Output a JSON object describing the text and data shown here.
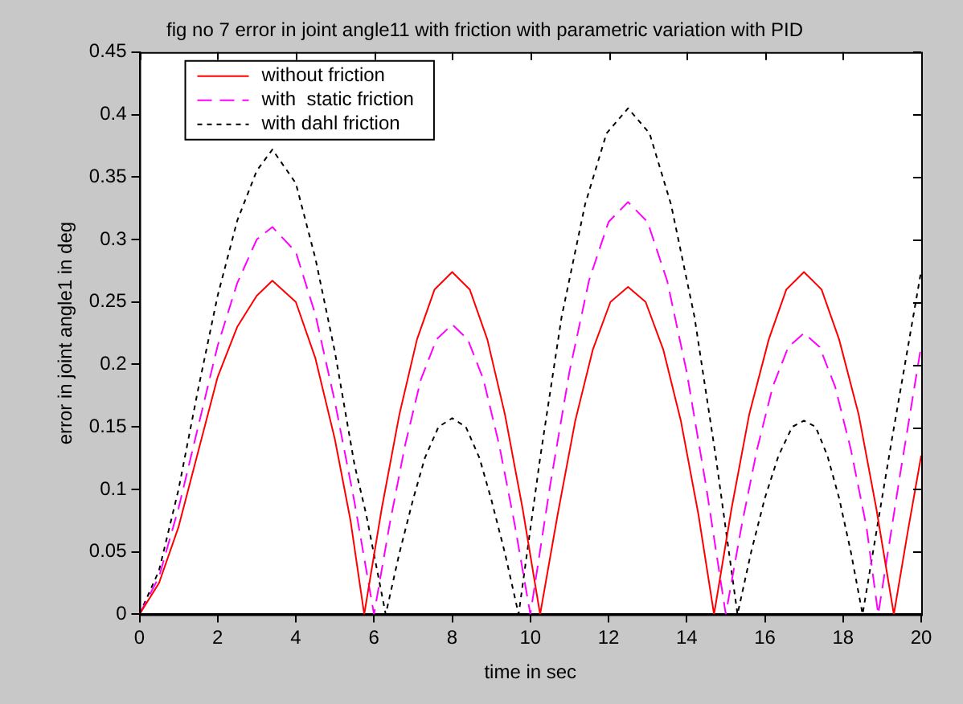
{
  "chart_data": {
    "type": "line",
    "title": "fig no 7 error in joint angle11 with friction with parametric variation with PID",
    "xlabel": "time in sec",
    "ylabel": "error in joint angle1 in deg",
    "xlim": [
      0,
      20
    ],
    "xticks": [
      0,
      2,
      4,
      6,
      8,
      10,
      12,
      14,
      16,
      18,
      20
    ],
    "ylim": [
      0,
      0.45
    ],
    "yticks": [
      0,
      0.05,
      0.1,
      0.15,
      0.2,
      0.25,
      0.3,
      0.35,
      0.4,
      0.45
    ],
    "grid": false,
    "legend": "top left",
    "marker": "none",
    "series": [
      {
        "name": "without friction",
        "color": "#ff0000",
        "line_style": "solid",
        "x": [
          0,
          0.5,
          1,
          1.5,
          2,
          2.5,
          3,
          3.4,
          4,
          4.5,
          5,
          5.4,
          5.75,
          6.2,
          6.65,
          7.1,
          7.55,
          8,
          8.45,
          8.9,
          9.35,
          9.8,
          10.25,
          10.7,
          11.15,
          11.6,
          12.05,
          12.5,
          12.95,
          13.4,
          13.85,
          14.3,
          14.7,
          15.15,
          15.6,
          16.1,
          16.55,
          17,
          17.45,
          17.9,
          18.4,
          18.85,
          19.3,
          19.65,
          20
        ],
        "values": [
          0,
          0.025,
          0.07,
          0.13,
          0.19,
          0.23,
          0.255,
          0.267,
          0.25,
          0.205,
          0.14,
          0.075,
          0,
          0.085,
          0.16,
          0.22,
          0.26,
          0.274,
          0.26,
          0.22,
          0.16,
          0.085,
          0,
          0.08,
          0.155,
          0.212,
          0.25,
          0.262,
          0.25,
          0.212,
          0.155,
          0.08,
          0,
          0.085,
          0.16,
          0.22,
          0.26,
          0.274,
          0.26,
          0.22,
          0.16,
          0.085,
          0,
          0.065,
          0.127
        ]
      },
      {
        "name": "with  static friction",
        "color": "#ff00ff",
        "line_style": "dashed",
        "x": [
          0,
          0.5,
          1,
          1.5,
          2,
          2.5,
          3,
          3.4,
          4,
          4.5,
          5,
          5.5,
          6,
          6.4,
          6.8,
          7.2,
          7.6,
          8,
          8.4,
          8.8,
          9.2,
          9.6,
          10,
          10.5,
          11,
          11.5,
          12,
          12.5,
          13,
          13.5,
          14,
          14.5,
          15,
          15.4,
          15.8,
          16.2,
          16.6,
          17,
          17.4,
          17.8,
          18.2,
          18.6,
          18.9,
          19.45,
          20
        ],
        "values": [
          0,
          0.03,
          0.085,
          0.15,
          0.215,
          0.265,
          0.3,
          0.31,
          0.29,
          0.24,
          0.17,
          0.09,
          0,
          0.072,
          0.136,
          0.188,
          0.22,
          0.232,
          0.22,
          0.188,
          0.136,
          0.072,
          0,
          0.102,
          0.194,
          0.267,
          0.314,
          0.33,
          0.314,
          0.267,
          0.194,
          0.102,
          0,
          0.07,
          0.132,
          0.182,
          0.214,
          0.225,
          0.214,
          0.182,
          0.132,
          0.07,
          0,
          0.11,
          0.215
        ]
      },
      {
        "name": "with dahl friction",
        "color": "#000000",
        "line_style": "dotted",
        "x": [
          0,
          0.5,
          1,
          1.5,
          2,
          2.5,
          3,
          3.4,
          4,
          4.5,
          5,
          5.5,
          5.8,
          6.3,
          6.65,
          7,
          7.3,
          7.65,
          8,
          8.35,
          8.7,
          9,
          9.35,
          9.7,
          10.25,
          10.8,
          11.4,
          11.95,
          12.5,
          13.05,
          13.6,
          14.2,
          14.75,
          15.3,
          15.65,
          16,
          16.35,
          16.7,
          17,
          17.3,
          17.6,
          17.9,
          18.2,
          18.5,
          19.25,
          20
        ],
        "values": [
          0,
          0.035,
          0.1,
          0.18,
          0.255,
          0.315,
          0.355,
          0.372,
          0.345,
          0.285,
          0.21,
          0.12,
          0.08,
          0,
          0.049,
          0.092,
          0.125,
          0.15,
          0.157,
          0.15,
          0.125,
          0.092,
          0.049,
          0,
          0.125,
          0.238,
          0.328,
          0.385,
          0.405,
          0.385,
          0.328,
          0.238,
          0.125,
          0,
          0.05,
          0.093,
          0.127,
          0.15,
          0.155,
          0.15,
          0.127,
          0.093,
          0.05,
          0,
          0.14,
          0.275
        ]
      }
    ]
  }
}
